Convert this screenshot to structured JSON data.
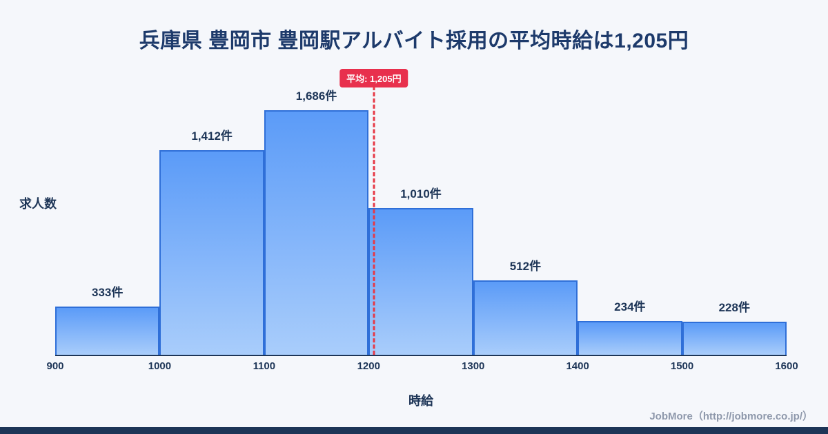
{
  "title": "兵庫県 豊岡市 豊岡駅アルバイト採用の平均時給は1,205円",
  "chart_data": {
    "type": "bar",
    "title": "兵庫県 豊岡市 豊岡駅アルバイト採用の平均時給は1,205円",
    "xlabel": "時給",
    "ylabel": "求人数",
    "bin_edges": [
      "900",
      "1000",
      "1100",
      "1200",
      "1300",
      "1400",
      "1500",
      "1600"
    ],
    "x_range": [
      900,
      1600
    ],
    "values": [
      333,
      1412,
      1686,
      1010,
      512,
      234,
      228
    ],
    "bar_labels": [
      "333件",
      "1,412件",
      "1,686件",
      "1,010件",
      "512件",
      "234件",
      "228件"
    ],
    "average": {
      "value": 1205,
      "label": "平均: 1,205円"
    },
    "grid": false,
    "legend": "none",
    "colors": {
      "background": "#f5f7fb",
      "bar_fill_top": "#5b9bf8",
      "bar_fill_bottom": "#a9cdfb",
      "bar_border": "#2f6fd8",
      "axis": "#1d3557",
      "text": "#1d3557",
      "average_line": "#e63946",
      "badge_bg": "#e8304d",
      "badge_text": "#ffffff"
    }
  },
  "footer": {
    "credit": "JobMore（http://jobmore.co.jp/）"
  }
}
